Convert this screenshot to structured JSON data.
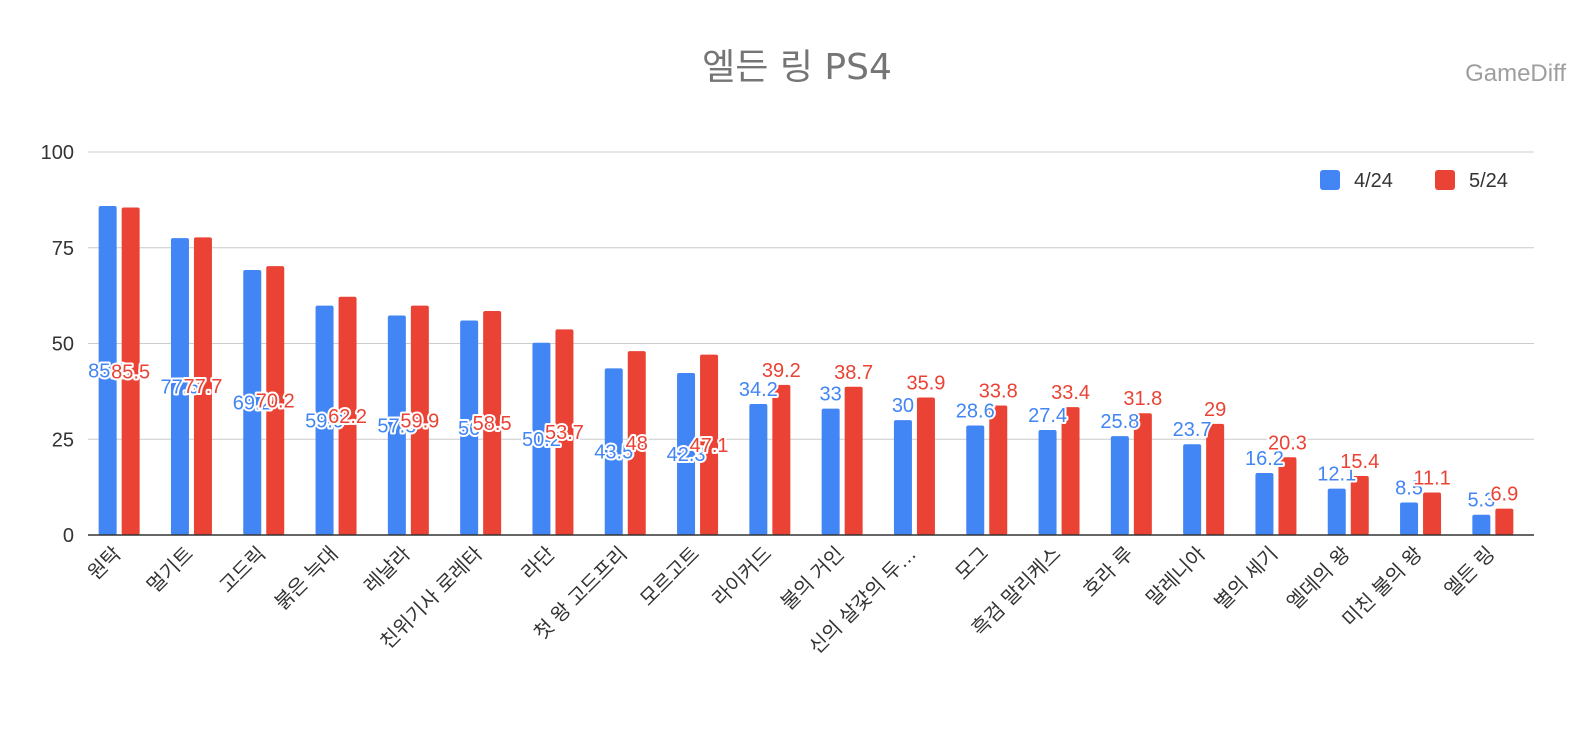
{
  "colors": {
    "series_1": "#4285f4",
    "series_2": "#ea4335",
    "grid": "#cccccc",
    "axis": "#333333",
    "title": "#757575",
    "watermark": "#9e9e9e"
  },
  "watermark": "GameDiff",
  "chart_data": {
    "type": "bar",
    "title": "엘든 링 PS4",
    "xlabel": "",
    "ylabel": "",
    "ylim": [
      0,
      100
    ],
    "yticks": [
      0,
      25,
      50,
      75,
      100
    ],
    "grid": true,
    "legend_position": "top-right",
    "categories": [
      "원탁",
      "멀기트",
      "고드릭",
      "붉은 늑대",
      "레날라",
      "친위기사 로레타",
      "라단",
      "첫 왕 고드프리",
      "모르고트",
      "라이커드",
      "불의 거인",
      "신의 살갗의 두…",
      "모그",
      "흑검 말리케스",
      "호라 루",
      "말레니아",
      "별의 세기",
      "엘데의 왕",
      "미친 불의 왕",
      "엘든 링"
    ],
    "series": [
      {
        "name": "4/24",
        "values": [
          85.9,
          77.5,
          69.2,
          59.9,
          57.3,
          56,
          50.2,
          43.5,
          42.3,
          34.2,
          33,
          30,
          28.6,
          27.4,
          25.8,
          23.7,
          16.2,
          12.1,
          8.5,
          5.3
        ]
      },
      {
        "name": "5/24",
        "values": [
          85.5,
          77.7,
          70.2,
          62.2,
          59.9,
          58.5,
          53.7,
          48,
          47.1,
          39.2,
          38.7,
          35.9,
          33.8,
          33.4,
          31.8,
          29,
          20.3,
          15.4,
          11.1,
          6.9
        ]
      }
    ]
  }
}
